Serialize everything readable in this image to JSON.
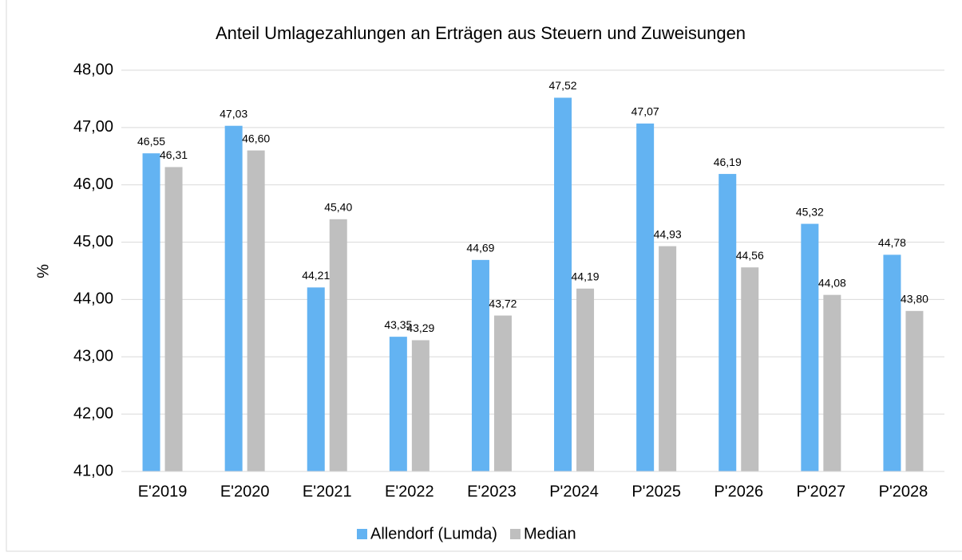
{
  "chart_data": {
    "type": "bar",
    "title": "Anteil Umlagezahlungen an Erträgen aus Steuern und Zuweisungen",
    "y_label": "%",
    "categories": [
      "E'2019",
      "E'2020",
      "E'2021",
      "E'2022",
      "E'2023",
      "P'2024",
      "P'2025",
      "P'2026",
      "P'2027",
      "P'2028"
    ],
    "series": [
      {
        "name": "Allendorf (Lumda)",
        "color": "#63b3f2",
        "values": [
          46.55,
          47.03,
          44.21,
          43.35,
          44.69,
          47.52,
          47.07,
          46.19,
          45.32,
          44.78
        ],
        "value_labels": [
          "46,55",
          "47,03",
          "44,21",
          "43,35",
          "44,69",
          "47,52",
          "47,07",
          "46,19",
          "45,32",
          "44,78"
        ]
      },
      {
        "name": "Median",
        "color": "#bfbfbf",
        "values": [
          46.31,
          46.6,
          45.4,
          43.29,
          43.72,
          44.19,
          44.93,
          44.56,
          44.08,
          43.8
        ],
        "value_labels": [
          "46,31",
          "46,60",
          "45,40",
          "43,29",
          "43,72",
          "44,19",
          "44,93",
          "44,56",
          "44,08",
          "43,80"
        ]
      }
    ],
    "ylim": [
      41,
      48
    ],
    "yticks": [
      {
        "value": 41,
        "label": "41,00"
      },
      {
        "value": 42,
        "label": "42,00"
      },
      {
        "value": 43,
        "label": "43,00"
      },
      {
        "value": 44,
        "label": "44,00"
      },
      {
        "value": 45,
        "label": "45,00"
      },
      {
        "value": 46,
        "label": "46,00"
      },
      {
        "value": 47,
        "label": "47,00"
      },
      {
        "value": 48,
        "label": "48,00"
      }
    ],
    "grid": true,
    "legend": "bottom"
  }
}
